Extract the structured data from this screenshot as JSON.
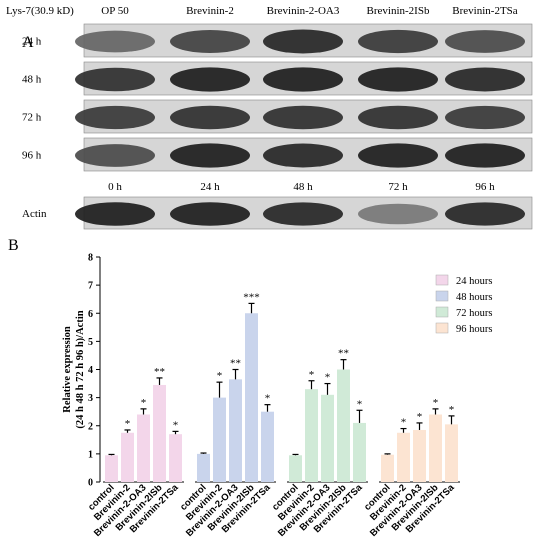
{
  "panel_a": {
    "letter": "A",
    "protein_label": "Lys-7(30.9 kD)",
    "column_headers": [
      "OP 50",
      "Brevinin-2",
      "Brevinin-2-OA3",
      "Brevinin-2ISb",
      "Brevinin-2TSa"
    ],
    "rows": [
      {
        "label": "24 h",
        "intensity": [
          0.55,
          0.75,
          0.9,
          0.8,
          0.7
        ]
      },
      {
        "label": "48 h",
        "intensity": [
          0.85,
          0.95,
          0.95,
          0.95,
          0.9
        ]
      },
      {
        "label": "72 h",
        "intensity": [
          0.8,
          0.85,
          0.85,
          0.85,
          0.8
        ]
      },
      {
        "label": "96 h",
        "intensity": [
          0.7,
          0.95,
          0.9,
          0.95,
          0.95
        ]
      }
    ],
    "actin_time_labels": [
      "0 h",
      "24 h",
      "48 h",
      "72 h",
      "96 h"
    ],
    "actin_label": "Actin",
    "actin_intensity": [
      0.95,
      0.95,
      0.9,
      0.45,
      0.9
    ]
  },
  "panel_b": {
    "letter": "B"
  },
  "chart_data": {
    "type": "bar",
    "ylabel_line1": "Relative expression",
    "ylabel_line2": "(24 h 48 h 72 h 96 h)/Actin",
    "ylim": [
      0,
      8
    ],
    "yticks": [
      0,
      1,
      2,
      3,
      4,
      5,
      6,
      7,
      8
    ],
    "categories": [
      "control",
      "Brevinin-2",
      "Brevinin-2-OA3",
      "Brevinin-2ISb",
      "Brevinin-2TSa"
    ],
    "legend_position": "top-right",
    "series": [
      {
        "name": "24 hours",
        "color": "#f3d6ea",
        "values": [
          0.95,
          1.75,
          2.4,
          3.45,
          1.7
        ],
        "errors": [
          0.03,
          0.1,
          0.2,
          0.25,
          0.1
        ],
        "sig": [
          "",
          "*",
          "*",
          "**",
          "*"
        ]
      },
      {
        "name": "48 hours",
        "color": "#c9d4ec",
        "values": [
          1.0,
          3.0,
          3.65,
          6.0,
          2.5
        ],
        "errors": [
          0.03,
          0.55,
          0.35,
          0.35,
          0.25
        ],
        "sig": [
          "",
          "*",
          "**",
          "***",
          "*"
        ]
      },
      {
        "name": "72 hours",
        "color": "#d0ead7",
        "values": [
          0.95,
          3.3,
          3.1,
          4.0,
          2.1
        ],
        "errors": [
          0.03,
          0.3,
          0.4,
          0.35,
          0.45
        ],
        "sig": [
          "",
          "*",
          "*",
          "**",
          "*"
        ]
      },
      {
        "name": "96 hours",
        "color": "#fce4d2",
        "values": [
          0.97,
          1.75,
          1.85,
          2.4,
          2.05
        ],
        "errors": [
          0.03,
          0.15,
          0.25,
          0.2,
          0.3
        ],
        "sig": [
          "",
          "*",
          "*",
          "*",
          "*"
        ]
      }
    ]
  }
}
